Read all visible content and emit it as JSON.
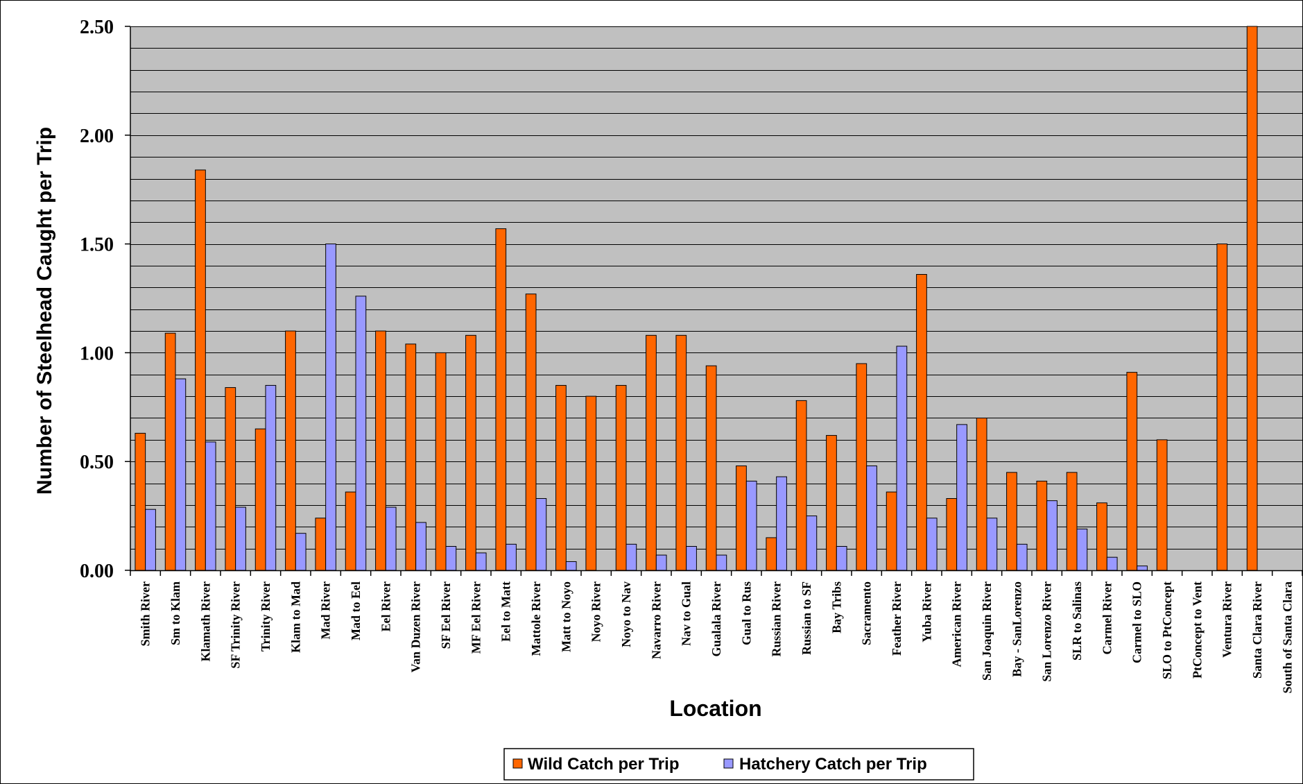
{
  "chart_data": {
    "type": "bar",
    "xlabel": "Location",
    "ylabel": "Number of Steelhead Caught per Trip",
    "ylim": [
      0,
      2.5
    ],
    "ytick_step": 0.5,
    "gridline_step": 0.1,
    "grid": true,
    "legend_position": "bottom",
    "colors": {
      "plot_background": "#c0c0c0",
      "gridline": "#000000",
      "wild": "#ff6600",
      "hatchery": "#9999ff"
    },
    "yticks": [
      "0.00",
      "0.50",
      "1.00",
      "1.50",
      "2.00",
      "2.50"
    ],
    "categories": [
      "Smith River",
      "Sm to Klam",
      "Klamath River",
      "SF Trinity River",
      "Trinity River",
      "Klam to Mad",
      "Mad River",
      "Mad to Eel",
      "Eel River",
      "Van Duzen River",
      "SF Eel River",
      "MF Eel River",
      "Eel to Matt",
      "Mattole River",
      "Matt to Noyo",
      "Noyo River",
      "Noyo to Nav",
      "Navarro River",
      "Nav to Gual",
      "Gualala River",
      "Gual to Rus",
      "Russian River",
      "Russian to SF",
      "Bay Tribs",
      "Sacramento",
      "Feather River",
      "Yuba River",
      "American River",
      "San Joaquin River",
      "Bay - SanLorenzo",
      "San Lorenzo River",
      "SLR to Salinas",
      "Carmel River",
      "Carmel to SLO",
      "SLO to PtConcept",
      "PtConcept to Vent",
      "Ventura River",
      "Santa Clara River",
      "South of Santa Clara"
    ],
    "series": [
      {
        "name": "Wild Catch per Trip",
        "values": [
          0.63,
          1.09,
          1.84,
          0.84,
          0.65,
          1.1,
          0.24,
          0.36,
          1.1,
          1.04,
          1.0,
          1.08,
          1.57,
          1.27,
          0.85,
          0.8,
          0.85,
          1.08,
          1.08,
          0.94,
          0.48,
          0.15,
          0.78,
          0.62,
          0.95,
          0.36,
          1.36,
          0.33,
          0.7,
          0.45,
          0.41,
          0.45,
          0.31,
          0.91,
          0.6,
          0.0,
          1.5,
          2.5,
          0.0
        ]
      },
      {
        "name": "Hatchery Catch per Trip",
        "values": [
          0.28,
          0.88,
          0.59,
          0.29,
          0.85,
          0.17,
          1.5,
          1.26,
          0.29,
          0.22,
          0.11,
          0.08,
          0.12,
          0.33,
          0.04,
          0.0,
          0.12,
          0.07,
          0.11,
          0.07,
          0.41,
          0.43,
          0.25,
          0.11,
          0.48,
          1.03,
          0.24,
          0.67,
          0.24,
          0.12,
          0.32,
          0.19,
          0.06,
          0.02,
          0.0,
          0.0,
          0.0,
          0.0,
          0.0
        ]
      }
    ]
  }
}
